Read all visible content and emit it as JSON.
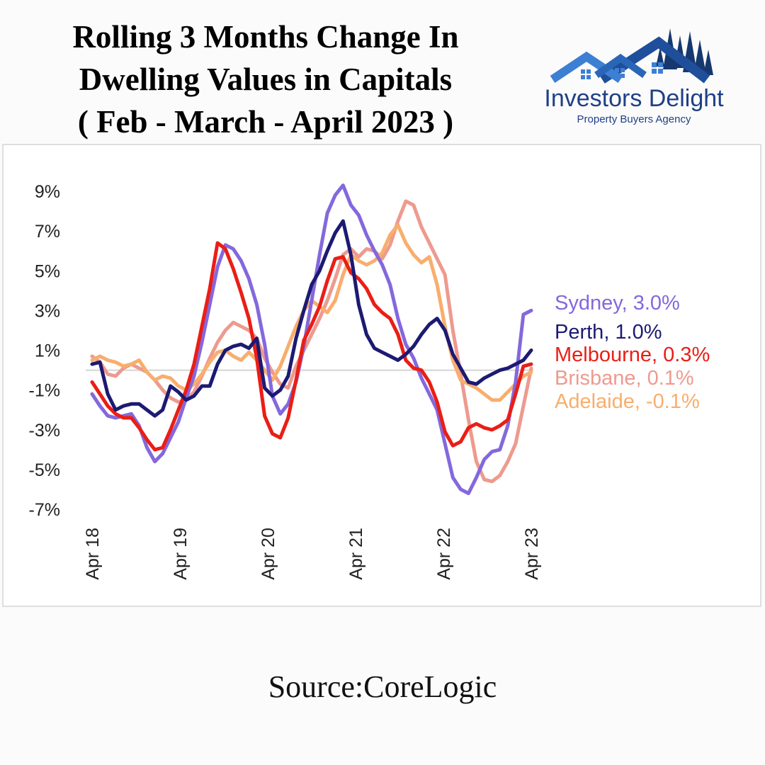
{
  "header": {
    "title_lines": [
      "Rolling 3 Months Change In",
      "Dwelling Values in Capitals",
      "( Feb - March - April 2023 )"
    ]
  },
  "logo": {
    "name": "Investors Delight",
    "tagline": "Property Buyers Agency",
    "icon": "house-roofs-with-pine-trees-icon",
    "colors": {
      "roof": "#1f4e9a",
      "roof_light": "#3d7fd3",
      "trees": "#16386f"
    }
  },
  "footer": {
    "source": "Source:CoreLogic"
  },
  "chart_data": {
    "type": "line",
    "title": "",
    "xlabel": "",
    "ylabel": "",
    "grid": false,
    "legend_position": "right, at end of lines",
    "ylim": [
      -7,
      9.5
    ],
    "xlim": [
      0,
      60
    ],
    "x_unit": "months since Apr 2018",
    "y_ticks": [
      "9%",
      "7%",
      "5%",
      "3%",
      "1%",
      "-1%",
      "-3%",
      "-5%",
      "-7%"
    ],
    "y_tick_values": [
      9,
      7,
      5,
      3,
      1,
      -1,
      -3,
      -5,
      -7
    ],
    "x_ticks": [
      "Apr 18",
      "Apr 19",
      "Apr 20",
      "Apr 21",
      "Apr 22",
      "Apr 23"
    ],
    "x_tick_values": [
      0,
      12,
      24,
      36,
      48,
      60
    ],
    "zero_line": true,
    "series": [
      {
        "name": "Brisbane",
        "label": "Brisbane, 0.1%",
        "color": "#ee9a8e",
        "values": [
          0.7,
          0.4,
          -0.2,
          -0.3,
          0.1,
          0.3,
          0.1,
          -0.1,
          -0.5,
          -1.0,
          -1.4,
          -1.6,
          -1.5,
          -1.1,
          -0.3,
          0.6,
          1.4,
          2.0,
          2.4,
          2.2,
          2.0,
          1.6,
          0.6,
          -0.1,
          -0.7,
          -0.9,
          0.2,
          1.0,
          1.8,
          2.6,
          3.5,
          4.6,
          5.8,
          6.1,
          5.7,
          6.1,
          6.0,
          5.6,
          6.3,
          7.5,
          8.5,
          8.3,
          7.2,
          6.4,
          5.6,
          4.8,
          2.0,
          -0.2,
          -2.5,
          -4.6,
          -5.5,
          -5.6,
          -5.3,
          -4.6,
          -3.7,
          -1.8,
          0.1
        ]
      },
      {
        "name": "Adelaide",
        "label": "Adelaide, -0.1%",
        "color": "#f8ae6d",
        "values": [
          0.5,
          0.7,
          0.5,
          0.4,
          0.2,
          0.3,
          0.5,
          -0.1,
          -0.5,
          -0.3,
          -0.4,
          -0.8,
          -1.0,
          -0.7,
          -0.2,
          0.4,
          0.9,
          1.0,
          0.7,
          0.5,
          0.9,
          0.5,
          0.0,
          -0.5,
          0.2,
          1.2,
          2.2,
          3.0,
          3.5,
          3.2,
          2.9,
          3.5,
          4.8,
          5.8,
          5.5,
          5.3,
          5.5,
          5.9,
          6.8,
          7.3,
          6.4,
          5.8,
          5.4,
          5.7,
          4.3,
          2.2,
          0.5,
          -0.5,
          -0.7,
          -0.9,
          -1.2,
          -1.5,
          -1.5,
          -1.1,
          -0.7,
          -0.3,
          -0.1
        ]
      },
      {
        "name": "Sydney",
        "label": "Sydney, 3.0%",
        "color": "#8468dd",
        "values": [
          -1.2,
          -1.8,
          -2.3,
          -2.4,
          -2.3,
          -2.2,
          -2.8,
          -3.9,
          -4.6,
          -4.2,
          -3.4,
          -2.6,
          -1.4,
          -0.3,
          1.4,
          3.3,
          5.2,
          6.3,
          6.1,
          5.5,
          4.6,
          3.3,
          1.3,
          -1.3,
          -2.2,
          -1.7,
          -0.6,
          1.2,
          3.5,
          5.8,
          7.9,
          8.8,
          9.3,
          8.3,
          7.8,
          6.8,
          6.0,
          5.3,
          4.3,
          2.6,
          1.3,
          0.6,
          -0.4,
          -1.2,
          -2.0,
          -3.7,
          -5.4,
          -6.0,
          -6.2,
          -5.4,
          -4.5,
          -4.1,
          -4.0,
          -2.8,
          -0.6,
          2.8,
          3.0
        ]
      },
      {
        "name": "Melbourne",
        "label": "Melbourne, 0.3%",
        "color": "#ea1e16",
        "values": [
          -0.6,
          -1.2,
          -1.8,
          -2.2,
          -2.4,
          -2.4,
          -2.9,
          -3.5,
          -4.0,
          -3.9,
          -3.0,
          -2.0,
          -1.0,
          0.3,
          2.2,
          4.1,
          6.4,
          6.1,
          5.1,
          3.9,
          2.6,
          0.6,
          -2.3,
          -3.2,
          -3.4,
          -2.4,
          -0.5,
          1.5,
          2.3,
          3.2,
          4.5,
          5.6,
          5.7,
          4.9,
          4.6,
          4.1,
          3.3,
          2.9,
          2.6,
          1.8,
          0.5,
          0.1,
          0.0,
          -0.6,
          -1.6,
          -3.1,
          -3.8,
          -3.6,
          -2.9,
          -2.7,
          -2.9,
          -3.0,
          -2.8,
          -2.5,
          -1.2,
          0.2,
          0.3
        ]
      },
      {
        "name": "Perth",
        "label": "Perth, 1.0%",
        "color": "#1d1a72",
        "values": [
          0.3,
          0.4,
          -1.2,
          -2.0,
          -1.8,
          -1.7,
          -1.7,
          -2.0,
          -2.3,
          -2.0,
          -0.8,
          -1.1,
          -1.5,
          -1.3,
          -0.8,
          -0.8,
          0.3,
          1.0,
          1.2,
          1.3,
          1.1,
          1.6,
          -0.9,
          -1.3,
          -1.0,
          -0.3,
          1.6,
          3.0,
          4.3,
          5.0,
          6.0,
          6.9,
          7.5,
          5.8,
          3.3,
          1.8,
          1.1,
          0.9,
          0.7,
          0.5,
          0.8,
          1.2,
          1.8,
          2.3,
          2.6,
          2.0,
          0.8,
          0.1,
          -0.6,
          -0.7,
          -0.4,
          -0.2,
          0.0,
          0.1,
          0.3,
          0.5,
          1.0
        ]
      }
    ],
    "legend": [
      {
        "label": "Sydney, 3.0%",
        "color": "#8468dd"
      },
      {
        "label": "Perth, 1.0%",
        "color": "#1d1a72"
      },
      {
        "label": "Melbourne, 0.3%",
        "color": "#ea1e16"
      },
      {
        "label": "Brisbane, 0.1%",
        "color": "#ee9a8e"
      },
      {
        "label": "Adelaide, -0.1%",
        "color": "#f8ae6d"
      }
    ]
  }
}
